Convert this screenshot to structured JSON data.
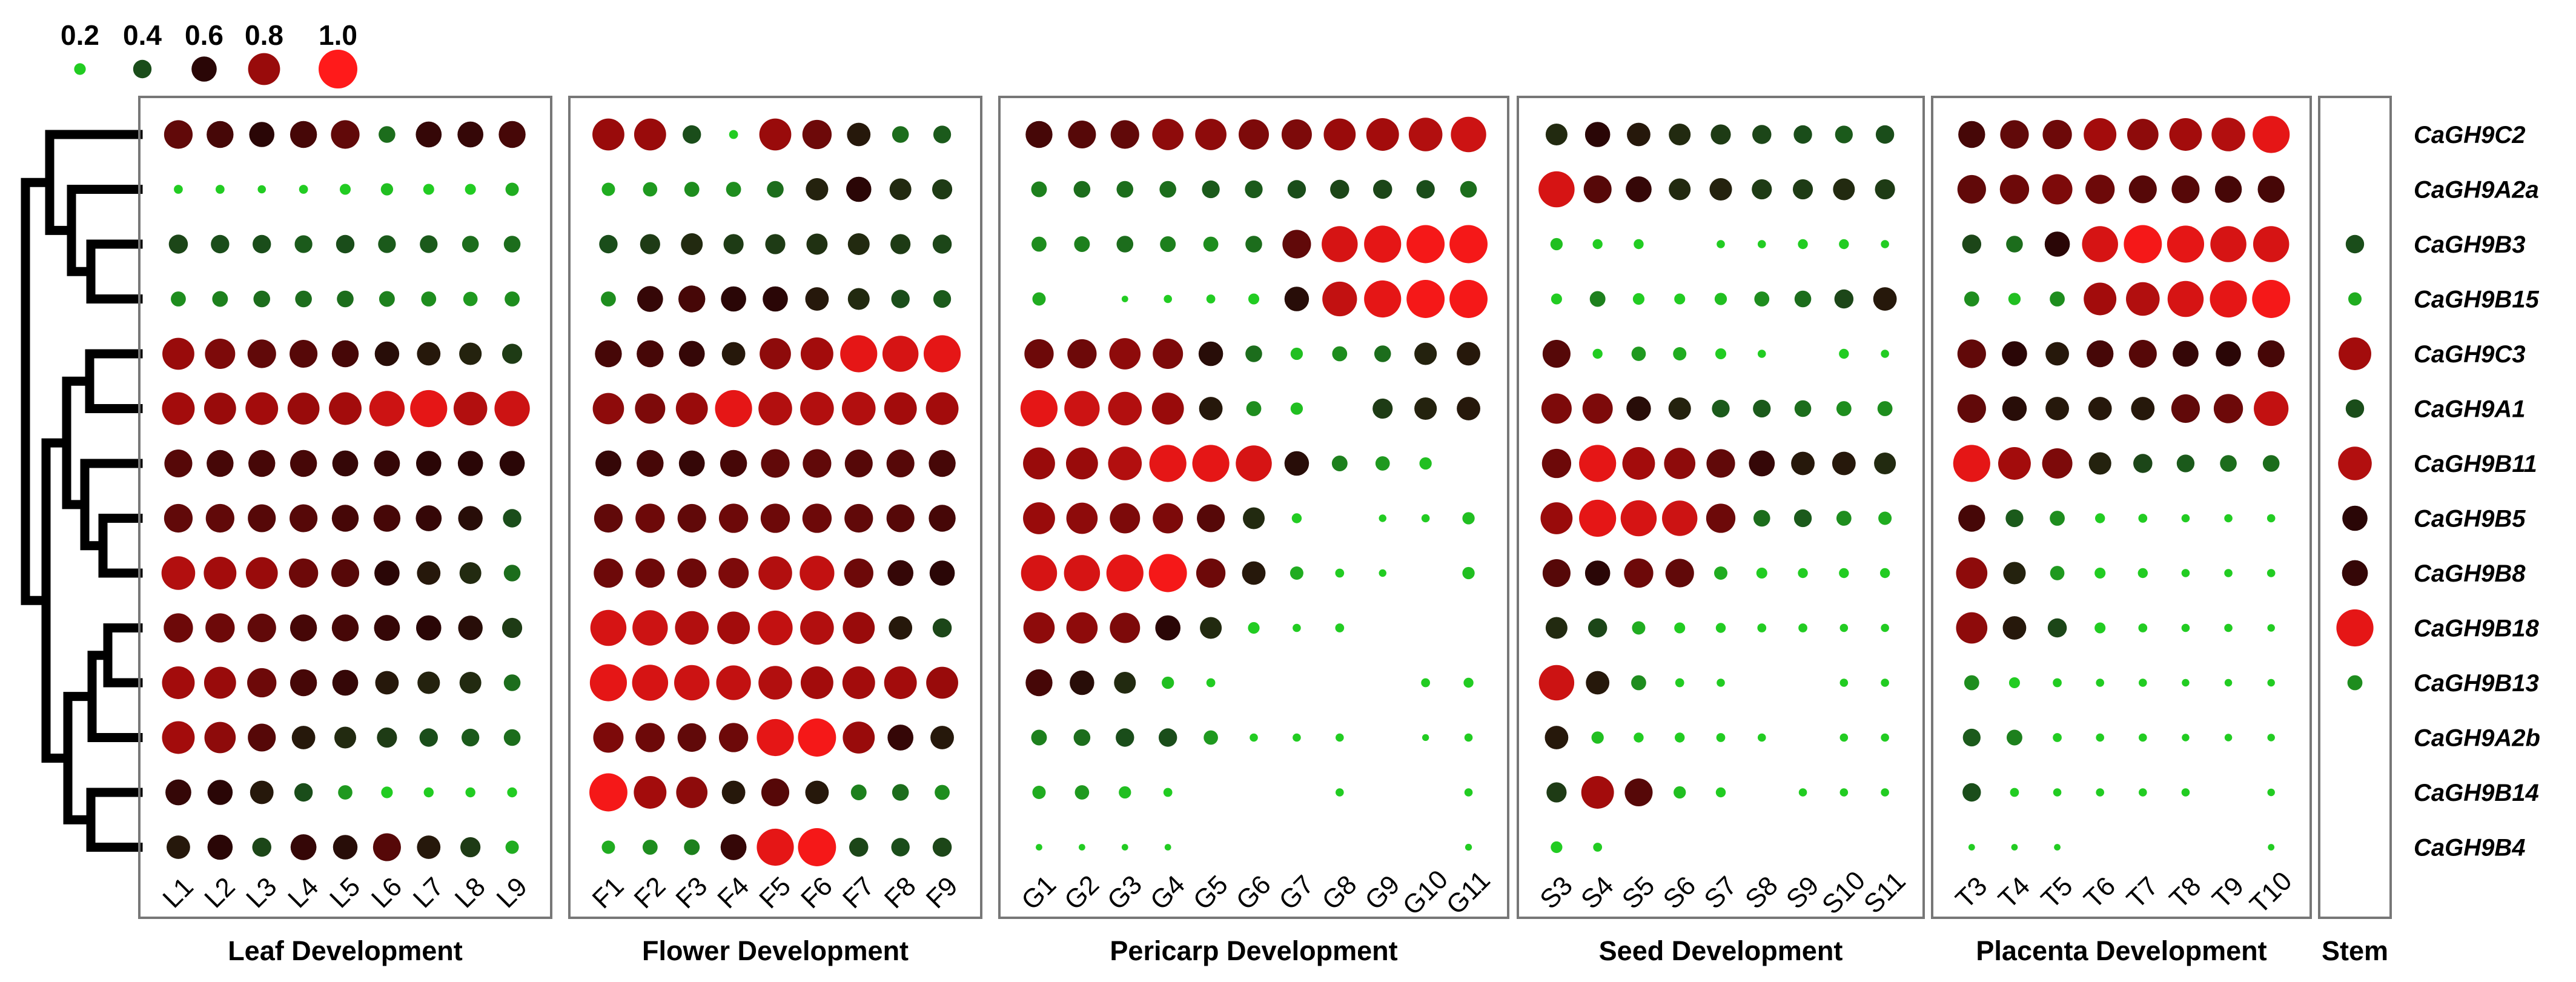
{
  "chart_data": {
    "type": "dot-heatmap",
    "legend": {
      "values": [
        0.2,
        0.4,
        0.6,
        0.8,
        1.0
      ],
      "labels": [
        "0.2",
        "0.4",
        "0.6",
        "0.8",
        "1.0"
      ]
    },
    "genes": [
      "CaGH9C2",
      "CaGH9A2a",
      "CaGH9B3",
      "CaGH9B15",
      "CaGH9C3",
      "CaGH9A1",
      "CaGH9B11",
      "CaGH9B5",
      "CaGH9B8",
      "CaGH9B18",
      "CaGH9B13",
      "CaGH9A2b",
      "CaGH9B14",
      "CaGH9B4"
    ],
    "panels": [
      {
        "name": "Leaf Development",
        "samples": [
          "L1",
          "L2",
          "L3",
          "L4",
          "L5",
          "L6",
          "L7",
          "L8",
          "L9"
        ],
        "values": [
          [
            0.7,
            0.65,
            0.6,
            0.65,
            0.7,
            0.35,
            0.62,
            0.62,
            0.65
          ],
          [
            0.12,
            0.12,
            0.1,
            0.12,
            0.18,
            0.22,
            0.18,
            0.18,
            0.25
          ],
          [
            0.42,
            0.4,
            0.4,
            0.38,
            0.4,
            0.38,
            0.38,
            0.35,
            0.35
          ],
          [
            0.3,
            0.32,
            0.35,
            0.35,
            0.35,
            0.32,
            0.3,
            0.28,
            0.3
          ],
          [
            0.8,
            0.75,
            0.7,
            0.68,
            0.65,
            0.58,
            0.55,
            0.52,
            0.45
          ],
          [
            0.82,
            0.8,
            0.82,
            0.8,
            0.82,
            0.9,
            0.95,
            0.85,
            0.9
          ],
          [
            0.68,
            0.65,
            0.65,
            0.65,
            0.62,
            0.62,
            0.6,
            0.6,
            0.6
          ],
          [
            0.7,
            0.7,
            0.68,
            0.68,
            0.65,
            0.65,
            0.62,
            0.58,
            0.4
          ],
          [
            0.85,
            0.82,
            0.8,
            0.72,
            0.68,
            0.6,
            0.55,
            0.5,
            0.35
          ],
          [
            0.72,
            0.72,
            0.7,
            0.65,
            0.65,
            0.62,
            0.6,
            0.58,
            0.45
          ],
          [
            0.82,
            0.8,
            0.72,
            0.65,
            0.62,
            0.55,
            0.52,
            0.5,
            0.35
          ],
          [
            0.82,
            0.78,
            0.68,
            0.55,
            0.5,
            0.45,
            0.4,
            0.38,
            0.35
          ],
          [
            0.62,
            0.6,
            0.55,
            0.4,
            0.28,
            0.2,
            0.15,
            0.15,
            0.15
          ],
          [
            0.55,
            0.6,
            0.42,
            0.62,
            0.58,
            0.68,
            0.55,
            0.45,
            0.25
          ]
        ]
      },
      {
        "name": "Flower Development",
        "samples": [
          "F1",
          "F2",
          "F3",
          "F4",
          "F5",
          "F6",
          "F7",
          "F8",
          "F9"
        ],
        "values": [
          [
            0.8,
            0.8,
            0.4,
            0.12,
            0.8,
            0.72,
            0.55,
            0.35,
            0.38
          ],
          [
            0.25,
            0.28,
            0.3,
            0.3,
            0.35,
            0.52,
            0.6,
            0.5,
            0.45
          ],
          [
            0.4,
            0.45,
            0.5,
            0.45,
            0.45,
            0.48,
            0.5,
            0.45,
            0.42
          ],
          [
            0.3,
            0.62,
            0.65,
            0.6,
            0.6,
            0.55,
            0.5,
            0.4,
            0.38
          ],
          [
            0.65,
            0.65,
            0.62,
            0.55,
            0.78,
            0.82,
            0.95,
            0.92,
            0.95
          ],
          [
            0.78,
            0.75,
            0.8,
            0.95,
            0.85,
            0.85,
            0.85,
            0.82,
            0.82
          ],
          [
            0.62,
            0.65,
            0.62,
            0.65,
            0.7,
            0.7,
            0.68,
            0.68,
            0.65
          ],
          [
            0.7,
            0.72,
            0.7,
            0.72,
            0.72,
            0.72,
            0.7,
            0.68,
            0.65
          ],
          [
            0.72,
            0.72,
            0.72,
            0.75,
            0.85,
            0.88,
            0.72,
            0.62,
            0.6
          ],
          [
            0.92,
            0.9,
            0.85,
            0.82,
            0.88,
            0.85,
            0.8,
            0.55,
            0.42
          ],
          [
            0.95,
            0.92,
            0.9,
            0.88,
            0.85,
            0.82,
            0.82,
            0.82,
            0.8
          ],
          [
            0.75,
            0.72,
            0.7,
            0.72,
            0.95,
            0.98,
            0.8,
            0.62,
            0.55
          ],
          [
            0.98,
            0.82,
            0.78,
            0.55,
            0.68,
            0.55,
            0.32,
            0.35,
            0.3
          ],
          [
            0.25,
            0.3,
            0.32,
            0.62,
            0.95,
            0.98,
            0.42,
            0.4,
            0.42
          ]
        ]
      },
      {
        "name": "Pericarp Development",
        "samples": [
          "G1",
          "G2",
          "G3",
          "G4",
          "G5",
          "G6",
          "G7",
          "G8",
          "G9",
          "G10",
          "G11"
        ],
        "values": [
          [
            0.65,
            0.68,
            0.7,
            0.78,
            0.78,
            0.75,
            0.75,
            0.8,
            0.82,
            0.85,
            0.9
          ],
          [
            0.32,
            0.35,
            0.35,
            0.35,
            0.38,
            0.38,
            0.4,
            0.42,
            0.42,
            0.4,
            0.35
          ],
          [
            0.3,
            0.32,
            0.35,
            0.32,
            0.3,
            0.35,
            0.7,
            0.92,
            0.95,
            0.98,
            0.98
          ],
          [
            0.25,
            0,
            0.05,
            0.1,
            0.12,
            0.18,
            0.58,
            0.88,
            0.95,
            0.98,
            0.98
          ],
          [
            0.72,
            0.72,
            0.78,
            0.75,
            0.58,
            0.35,
            0.22,
            0.3,
            0.35,
            0.52,
            0.55
          ],
          [
            0.95,
            0.9,
            0.85,
            0.8,
            0.55,
            0.3,
            0.22,
            0,
            0.45,
            0.52,
            0.55
          ],
          [
            0.8,
            0.8,
            0.85,
            0.95,
            0.95,
            0.92,
            0.58,
            0.32,
            0.28,
            0.22,
            0
          ],
          [
            0.8,
            0.78,
            0.75,
            0.75,
            0.68,
            0.5,
            0.15,
            0,
            0.08,
            0.1,
            0.22
          ],
          [
            0.92,
            0.92,
            0.95,
            0.98,
            0.72,
            0.55,
            0.25,
            0.12,
            0.08,
            0,
            0.22
          ],
          [
            0.78,
            0.78,
            0.75,
            0.6,
            0.5,
            0.2,
            0.1,
            0.12,
            0,
            0,
            0
          ],
          [
            0.65,
            0.58,
            0.5,
            0.22,
            0.12,
            0,
            0,
            0,
            0,
            0.12,
            0.15
          ],
          [
            0.32,
            0.35,
            0.4,
            0.4,
            0.28,
            0.1,
            0.1,
            0.1,
            0,
            0.06,
            0.1
          ],
          [
            0.25,
            0.28,
            0.22,
            0.12,
            0,
            0,
            0,
            0.1,
            0,
            0,
            0.1
          ],
          [
            0.05,
            0.05,
            0.05,
            0.05,
            0,
            0,
            0,
            0,
            0,
            0,
            0.06
          ]
        ]
      },
      {
        "name": "Seed Development",
        "samples": [
          "S3",
          "S4",
          "S5",
          "S6",
          "S7",
          "S8",
          "S9",
          "S10",
          "S11"
        ],
        "values": [
          [
            0.5,
            0.6,
            0.55,
            0.5,
            0.45,
            0.42,
            0.4,
            0.38,
            0.4
          ],
          [
            0.92,
            0.68,
            0.62,
            0.5,
            0.52,
            0.45,
            0.45,
            0.5,
            0.45
          ],
          [
            0.22,
            0.15,
            0.15,
            0,
            0.1,
            0.1,
            0.15,
            0.15,
            0.1
          ],
          [
            0.18,
            0.32,
            0.2,
            0.18,
            0.22,
            0.3,
            0.35,
            0.42,
            0.55
          ],
          [
            0.68,
            0.15,
            0.28,
            0.25,
            0.18,
            0.1,
            0,
            0.15,
            0.1
          ],
          [
            0.75,
            0.75,
            0.58,
            0.52,
            0.38,
            0.38,
            0.35,
            0.3,
            0.3
          ],
          [
            0.72,
            0.95,
            0.82,
            0.78,
            0.7,
            0.62,
            0.55,
            0.55,
            0.5
          ],
          [
            0.8,
            0.95,
            0.92,
            0.9,
            0.72,
            0.35,
            0.38,
            0.3,
            0.25
          ],
          [
            0.68,
            0.6,
            0.72,
            0.7,
            0.25,
            0.18,
            0.15,
            0.15,
            0.15
          ],
          [
            0.5,
            0.42,
            0.25,
            0.18,
            0.15,
            0.12,
            0.12,
            0.1,
            0.1
          ],
          [
            0.9,
            0.55,
            0.3,
            0.12,
            0.1,
            0,
            0,
            0.1,
            0.1
          ],
          [
            0.55,
            0.22,
            0.15,
            0.15,
            0.12,
            0.1,
            0,
            0.1,
            0.1
          ],
          [
            0.45,
            0.82,
            0.68,
            0.22,
            0.15,
            0,
            0.1,
            0.1,
            0.1
          ],
          [
            0.2,
            0.12,
            0,
            0,
            0,
            0,
            0,
            0,
            0
          ]
        ]
      },
      {
        "name": "Placenta Development",
        "samples": [
          "T3",
          "T4",
          "T5",
          "T6",
          "T7",
          "T8",
          "T9",
          "T10"
        ],
        "values": [
          [
            0.65,
            0.7,
            0.72,
            0.82,
            0.78,
            0.82,
            0.85,
            0.95
          ],
          [
            0.7,
            0.72,
            0.75,
            0.72,
            0.68,
            0.68,
            0.65,
            0.65
          ],
          [
            0.42,
            0.35,
            0.6,
            0.92,
            0.98,
            0.95,
            0.92,
            0.92
          ],
          [
            0.3,
            0.22,
            0.3,
            0.82,
            0.85,
            0.92,
            0.95,
            0.98
          ],
          [
            0.7,
            0.6,
            0.55,
            0.65,
            0.68,
            0.62,
            0.6,
            0.65
          ],
          [
            0.7,
            0.58,
            0.55,
            0.55,
            0.55,
            0.7,
            0.72,
            0.88
          ],
          [
            0.95,
            0.82,
            0.75,
            0.52,
            0.42,
            0.38,
            0.35,
            0.35
          ],
          [
            0.65,
            0.38,
            0.3,
            0.15,
            0.12,
            0.1,
            0.1,
            0.1
          ],
          [
            0.78,
            0.52,
            0.28,
            0.18,
            0.15,
            0.1,
            0.1,
            0.1
          ],
          [
            0.78,
            0.55,
            0.42,
            0.18,
            0.12,
            0.1,
            0.1,
            0.08
          ],
          [
            0.3,
            0.18,
            0.12,
            0.1,
            0.1,
            0.08,
            0.08,
            0.08
          ],
          [
            0.38,
            0.32,
            0.12,
            0.1,
            0.1,
            0.08,
            0.08,
            0.08
          ],
          [
            0.4,
            0.12,
            0.1,
            0.1,
            0.1,
            0.1,
            0,
            0.08
          ],
          [
            0.05,
            0.05,
            0.05,
            0,
            0,
            0,
            0,
            0.05
          ]
        ]
      },
      {
        "name": "Stem",
        "samples": [
          ""
        ],
        "values": [
          [
            0
          ],
          [
            0
          ],
          [
            0.4
          ],
          [
            0.25
          ],
          [
            0.82
          ],
          [
            0.4
          ],
          [
            0.85
          ],
          [
            0.6
          ],
          [
            0.62
          ],
          [
            0.95
          ],
          [
            0.3
          ],
          [
            0
          ],
          [
            0
          ],
          [
            0
          ]
        ]
      }
    ],
    "color_scale": {
      "low": "#22cc22",
      "mid": "#1a4d1a",
      "dark": "#2a0606",
      "high": "#ff1a1a"
    },
    "dendrogram_color": "#000000"
  }
}
